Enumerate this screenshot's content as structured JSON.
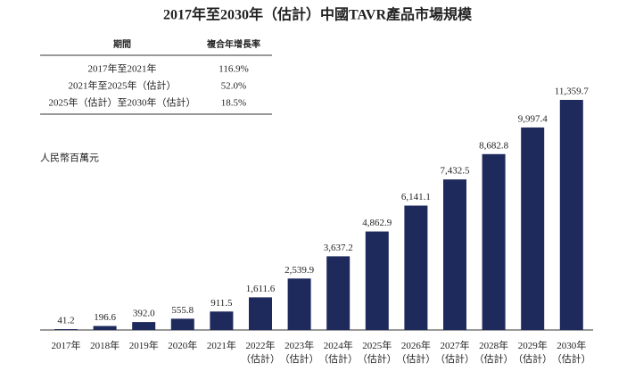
{
  "title": "2017年至2030年（估計）中國TAVR產品市場規模",
  "cagr_table": {
    "header": [
      "期間",
      "複合年增長率"
    ],
    "rows": [
      [
        "2017年至2021年",
        "116.9%"
      ],
      [
        "2021年至2025年（估計）",
        "52.0%"
      ],
      [
        "2025年（估計）至2030年（估計）",
        "18.5%"
      ]
    ]
  },
  "chart_data": {
    "type": "bar",
    "y_label": "人民幣百萬元",
    "color": "#1f2a5c",
    "categories": [
      "2017年",
      "2018年",
      "2019年",
      "2020年",
      "2021年",
      "2022年\n（估計）",
      "2023年\n（估計）",
      "2024年\n（估計）",
      "2025年\n（估計）",
      "2026年\n（估計）",
      "2027年\n（估計）",
      "2028年\n（估計）",
      "2029年\n（估計）",
      "2030年\n（估計）"
    ],
    "values": [
      41.2,
      196.6,
      392.0,
      555.8,
      911.5,
      1611.6,
      2539.9,
      3637.2,
      4862.9,
      6141.1,
      7432.5,
      8682.8,
      9997.4,
      11359.7
    ],
    "value_labels": [
      "41.2",
      "196.6",
      "392.0",
      "555.8",
      "911.5",
      "1,611.6",
      "2,539.9",
      "3,637.2",
      "4,862.9",
      "6,141.1",
      "7,432.5",
      "8,682.8",
      "9,997.4",
      "11,359.7"
    ]
  }
}
